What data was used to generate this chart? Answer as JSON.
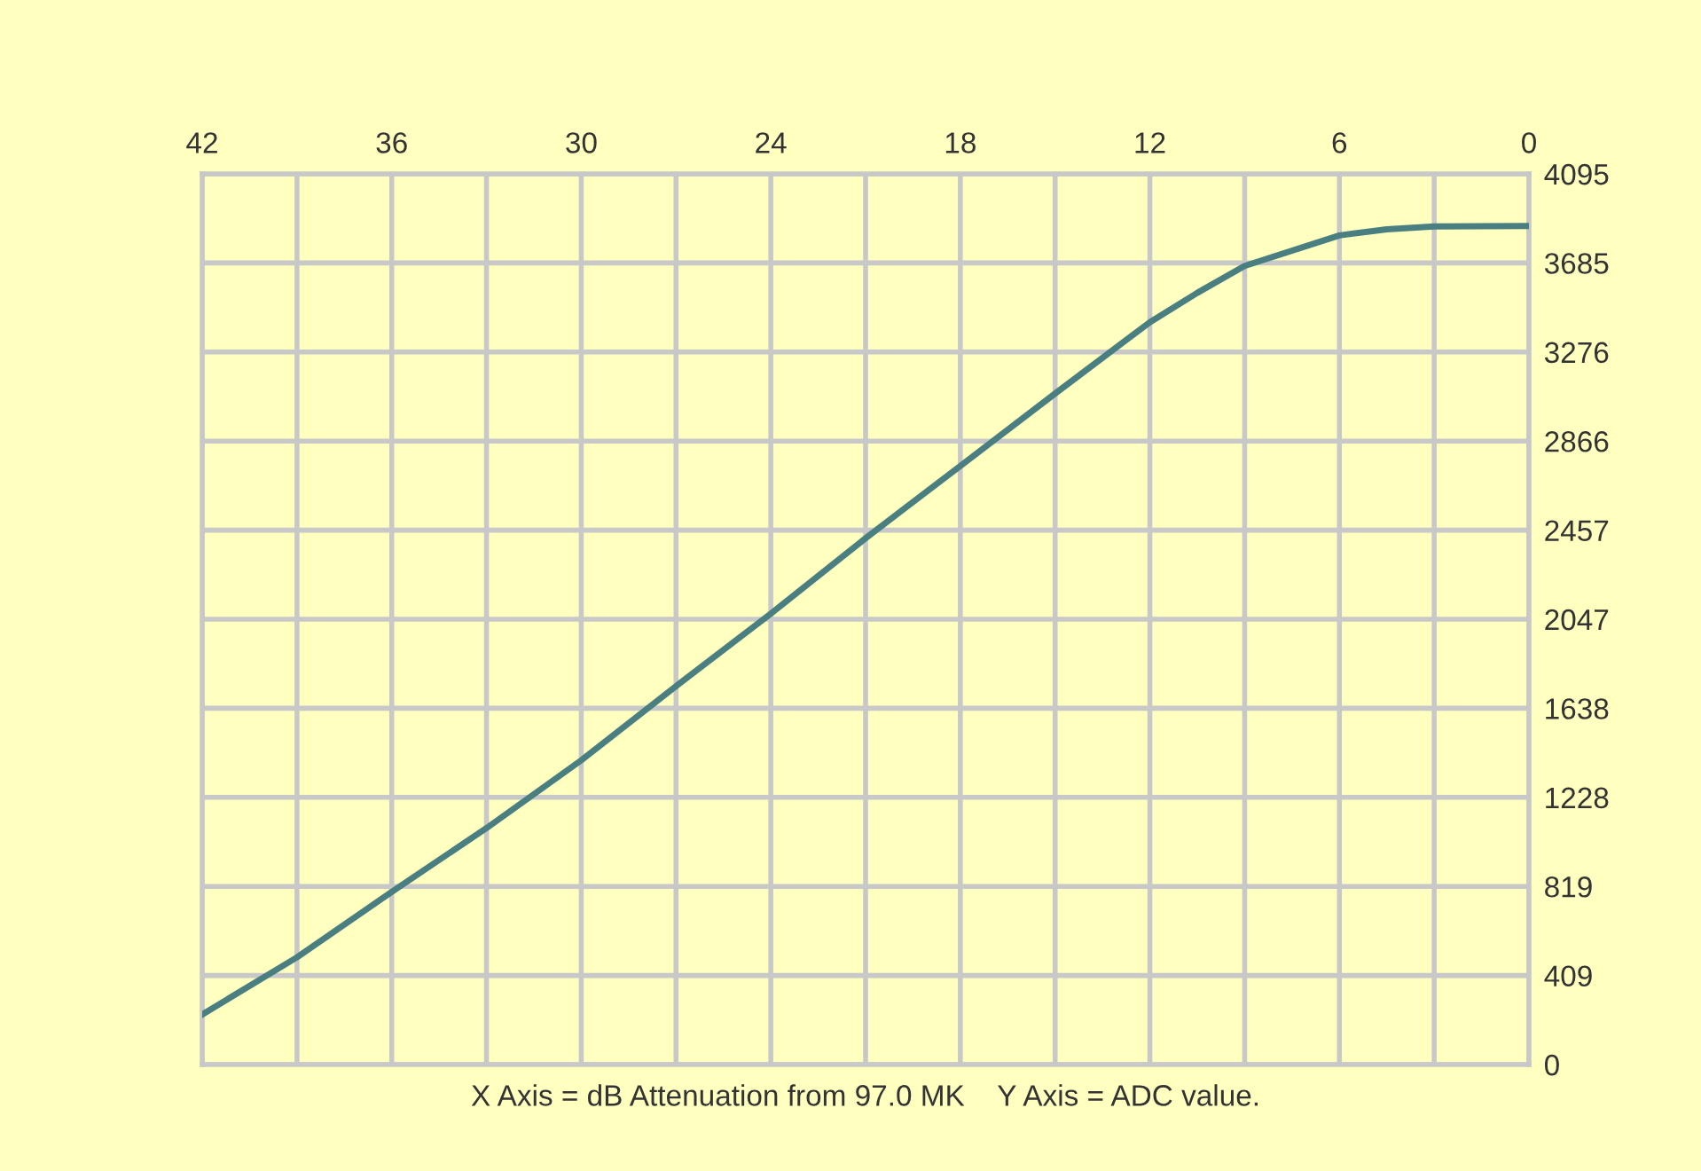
{
  "chart_data": {
    "type": "line",
    "xlabel": "X Axis = dB Attenuation from 97.0 MK    Y Axis = ADC value.",
    "x": [
      42,
      39,
      36,
      33,
      30,
      27,
      24,
      21,
      18,
      15,
      12,
      10.5,
      9,
      6,
      4.5,
      3,
      0
    ],
    "series": [
      {
        "color": "#4a7f82",
        "values": [
          230,
          493,
          794,
          1087,
          1399,
          1740,
          2073,
          2420,
          2752,
          3085,
          3413,
          3548,
          3672,
          3812,
          3840,
          3853,
          3855
        ]
      }
    ],
    "xlim": [
      42,
      0
    ],
    "xticks": [
      42,
      {
        "value": 39,
        "label": null
      },
      36,
      {
        "value": 33,
        "label": null
      },
      30,
      {
        "value": 27,
        "label": null
      },
      24,
      {
        "value": 21,
        "label": null
      },
      18,
      {
        "value": 15,
        "label": null
      },
      12,
      {
        "value": 9,
        "label": null
      },
      6,
      {
        "value": 3,
        "label": null
      },
      0
    ],
    "ylim": [
      0,
      4095
    ],
    "yticks": [
      0,
      {
        "value": 409.5,
        "label": "409"
      },
      819,
      {
        "value": 1228.5,
        "label": "1228"
      },
      1638,
      {
        "value": 2047.5,
        "label": "2047"
      },
      2457,
      {
        "value": 2866.5,
        "label": "2866"
      },
      3276,
      {
        "value": 3685.5,
        "label": "3685"
      },
      4095
    ],
    "grid": true,
    "marker": "none",
    "line_style": "solid"
  }
}
